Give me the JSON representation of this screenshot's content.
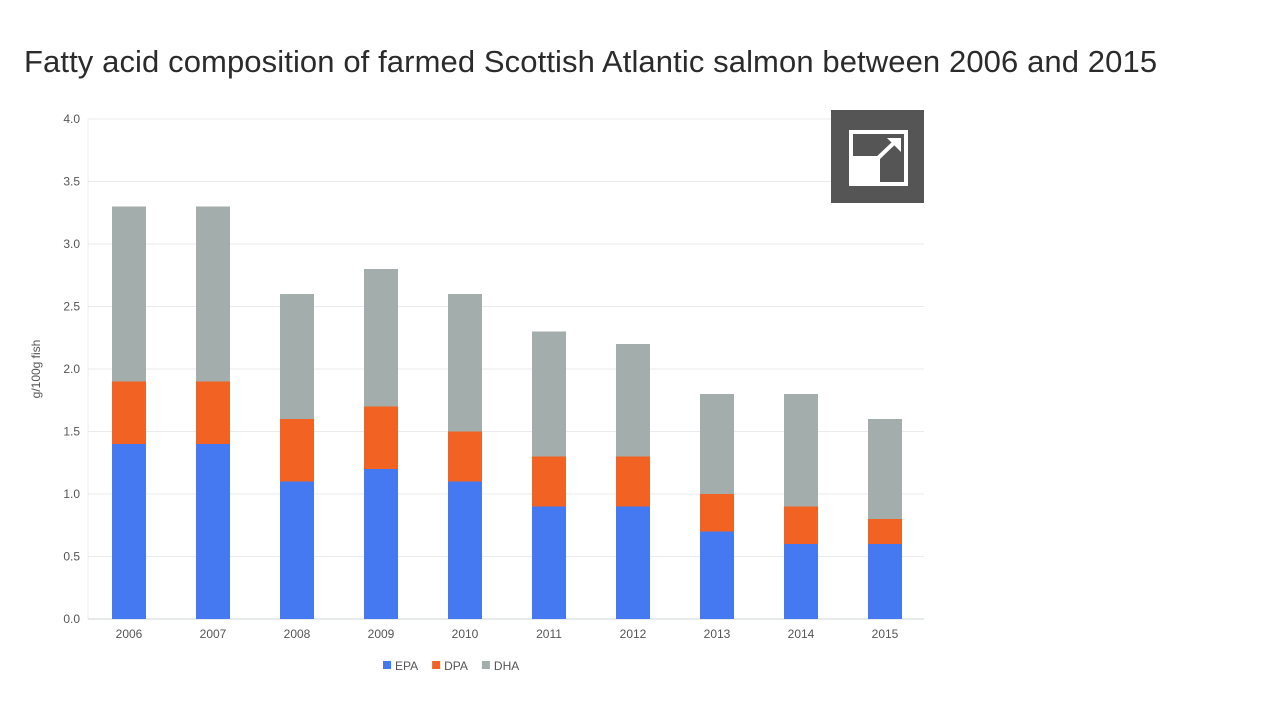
{
  "page": {
    "title": "Fatty acid composition of farmed Scottish Atlantic salmon between 2006 and 2015"
  },
  "expand_control": {
    "icon": "expand-icon"
  },
  "colors": {
    "EPA": "#4579f2",
    "DPA": "#f26222",
    "DHA": "#a3adab",
    "grid": "#e8ecec",
    "axis": "#cfd6d6",
    "text": "#555555",
    "button_bg": "#555555"
  },
  "chart_data": {
    "type": "bar",
    "stacked": true,
    "title": "Fatty acid composition of farmed Scottish Atlantic salmon between 2006 and 2015",
    "xlabel": "",
    "ylabel": "g/100g fish",
    "ylim": [
      0,
      4
    ],
    "yticks": [
      "0.0",
      "0.5",
      "1.0",
      "1.5",
      "2.0",
      "2.5",
      "3.0",
      "3.5",
      "4.0"
    ],
    "grid": true,
    "legend_position": "bottom",
    "categories": [
      "2006",
      "2007",
      "2008",
      "2009",
      "2010",
      "2011",
      "2012",
      "2013",
      "2014",
      "2015"
    ],
    "series": [
      {
        "name": "EPA",
        "values": [
          1.4,
          1.4,
          1.1,
          1.2,
          1.1,
          0.9,
          0.9,
          0.7,
          0.6,
          0.6
        ]
      },
      {
        "name": "DPA",
        "values": [
          0.5,
          0.5,
          0.5,
          0.5,
          0.4,
          0.4,
          0.4,
          0.3,
          0.3,
          0.2
        ]
      },
      {
        "name": "DHA",
        "values": [
          1.4,
          1.4,
          1.0,
          1.1,
          1.1,
          1.0,
          0.9,
          0.8,
          0.9,
          0.8
        ]
      }
    ]
  }
}
